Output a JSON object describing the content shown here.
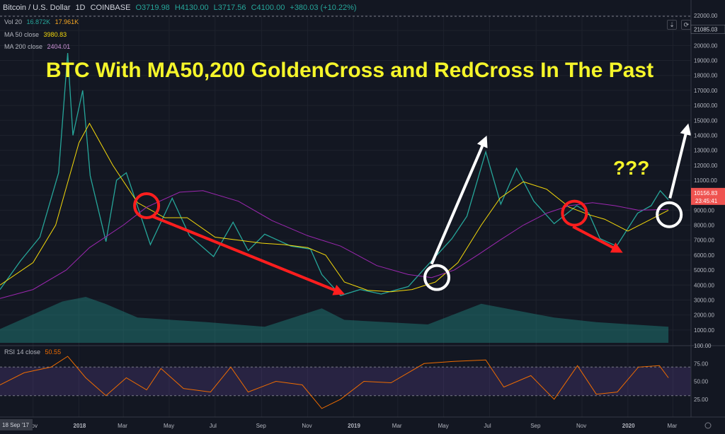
{
  "header": {
    "symbol": "Bitcoin / U.S. Dollar",
    "interval": "1D",
    "exchange": "COINBASE",
    "ohlc": [
      "O3719.98",
      "H4130.00",
      "L3717.56",
      "C4100.00",
      "+380.03 (+10.22%)"
    ],
    "ohlc_color": "#26a69a"
  },
  "indicators": {
    "vol": {
      "label": "Vol 20",
      "values": [
        "16.872K",
        "17.961K"
      ],
      "colors": [
        "#26a69a",
        "#f5a623"
      ]
    },
    "ma50": {
      "label": "MA 50 close",
      "value": "3980.83",
      "color": "#f5d90a"
    },
    "ma200": {
      "label": "MA 200 close",
      "value": "2404.01",
      "color": "#9c27b0"
    },
    "rsi": {
      "label": "RSI 14 close",
      "value": "50.55",
      "color": "#ef6c00"
    }
  },
  "toolbar": {
    "down_arrow_icon": "⇣",
    "refresh_icon": "⟳"
  },
  "annotation": {
    "title": "BTC With MA50,200 GoldenCross and RedCross In The Past",
    "question": "???",
    "text_color": "#f5f52a"
  },
  "price_labels": {
    "current": "10156.83",
    "countdown": "23:45:41",
    "top_dashed": "21085.03"
  },
  "chart_data": [
    {
      "type": "line",
      "title": "Bitcoin / U.S. Dollar · 1D · COINBASE",
      "y_scale": "linear",
      "ylim": [
        0,
        22000
      ],
      "y_ticks": [
        1000,
        2000,
        3000,
        4000,
        5000,
        6000,
        7000,
        8000,
        9000,
        10000,
        11000,
        12000,
        13000,
        14000,
        15000,
        16000,
        17000,
        18000,
        19000,
        20000,
        21000,
        22000
      ],
      "y_tick_labels": [
        "1000.00",
        "2000.00",
        "3000.00",
        "4000.00",
        "5000.00",
        "6000.00",
        "7000.00",
        "8000.00",
        "9000.00",
        "10000.00",
        "11000.00",
        "12000.00",
        "13000.00",
        "14000.00",
        "15000.00",
        "16000.00",
        "17000.00",
        "18000.00",
        "19000.00",
        "20000.00",
        "21000.00",
        "22000.00"
      ],
      "x_tick_labels": [
        "Nov",
        "2018",
        "Mar",
        "May",
        "Jul",
        "Sep",
        "Nov",
        "2019",
        "Mar",
        "May",
        "Jul",
        "Sep",
        "Nov",
        "2020",
        "Mar"
      ],
      "x_tick_dates": [
        "2017-11-01",
        "2018-01-01",
        "2018-03-01",
        "2018-05-01",
        "2018-07-01",
        "2018-09-01",
        "2018-11-01",
        "2019-01-01",
        "2019-03-01",
        "2019-05-01",
        "2019-07-01",
        "2019-09-01",
        "2019-11-01",
        "2020-01-01",
        "2020-03-01"
      ],
      "x_range": [
        "2017-09-18",
        "2020-03-25"
      ],
      "date_marker": "18 Sep '17",
      "series": [
        {
          "name": "BTC close",
          "color": "#26a69a",
          "x": [
            "2017-09-18",
            "2017-10-15",
            "2017-11-10",
            "2017-12-05",
            "2017-12-17",
            "2017-12-24",
            "2018-01-06",
            "2018-01-16",
            "2018-02-06",
            "2018-02-20",
            "2018-03-05",
            "2018-04-06",
            "2018-05-05",
            "2018-05-28",
            "2018-06-29",
            "2018-07-25",
            "2018-08-14",
            "2018-09-05",
            "2018-10-10",
            "2018-11-05",
            "2018-11-20",
            "2018-12-15",
            "2019-01-10",
            "2019-02-07",
            "2019-03-15",
            "2019-04-02",
            "2019-05-12",
            "2019-06-01",
            "2019-06-26",
            "2019-07-16",
            "2019-08-06",
            "2019-08-29",
            "2019-09-25",
            "2019-10-25",
            "2019-11-10",
            "2019-11-25",
            "2019-12-17",
            "2020-01-14",
            "2020-02-01",
            "2020-02-13",
            "2020-02-24"
          ],
          "y": [
            3700,
            5600,
            7200,
            11500,
            19500,
            14000,
            17000,
            11300,
            6900,
            11000,
            11500,
            6700,
            9800,
            7300,
            5900,
            8200,
            6300,
            7400,
            6600,
            6400,
            4700,
            3300,
            3700,
            3400,
            3900,
            4900,
            7100,
            8600,
            12900,
            9400,
            11800,
            9600,
            8100,
            9300,
            8800,
            7100,
            6600,
            8800,
            9300,
            10300,
            9700
          ]
        },
        {
          "name": "MA 50 close",
          "color": "#f5d90a",
          "x": [
            "2017-09-18",
            "2017-11-01",
            "2017-12-01",
            "2018-01-01",
            "2018-01-15",
            "2018-02-15",
            "2018-03-20",
            "2018-04-25",
            "2018-05-25",
            "2018-07-01",
            "2018-08-01",
            "2018-09-01",
            "2018-10-01",
            "2018-11-01",
            "2018-11-25",
            "2018-12-20",
            "2019-01-20",
            "2019-02-20",
            "2019-03-20",
            "2019-04-20",
            "2019-05-20",
            "2019-06-20",
            "2019-07-15",
            "2019-08-15",
            "2019-09-15",
            "2019-10-15",
            "2019-11-10",
            "2019-12-01",
            "2020-01-01",
            "2020-02-01",
            "2020-02-24"
          ],
          "y": [
            4000,
            5500,
            8000,
            13500,
            14800,
            12000,
            9500,
            8500,
            8500,
            7200,
            7000,
            6800,
            6700,
            6500,
            6000,
            4200,
            3650,
            3550,
            3700,
            4200,
            5500,
            8000,
            9800,
            10900,
            10400,
            9200,
            8700,
            8400,
            7600,
            8400,
            9000
          ]
        },
        {
          "name": "MA 200 close",
          "color": "#9c27b0",
          "x": [
            "2017-09-18",
            "2017-11-01",
            "2017-12-15",
            "2018-01-15",
            "2018-03-01",
            "2018-04-01",
            "2018-05-15",
            "2018-06-15",
            "2018-08-01",
            "2018-09-15",
            "2018-11-01",
            "2018-12-15",
            "2019-02-01",
            "2019-03-15",
            "2019-04-15",
            "2019-05-15",
            "2019-06-15",
            "2019-07-15",
            "2019-08-15",
            "2019-09-15",
            "2019-10-15",
            "2019-11-15",
            "2019-12-15",
            "2020-01-15",
            "2020-02-24"
          ],
          "y": [
            3100,
            3700,
            5000,
            6500,
            8000,
            9200,
            10200,
            10300,
            9600,
            8300,
            7300,
            6600,
            5300,
            4700,
            4500,
            5000,
            6000,
            7000,
            8000,
            8800,
            9300,
            9500,
            9300,
            9000,
            9050
          ]
        }
      ],
      "annotations": [
        {
          "kind": "circle",
          "x": "2018-04-01",
          "y": 9300,
          "color": "red"
        },
        {
          "kind": "arrow",
          "from": [
            "2018-04-08",
            8600
          ],
          "to": [
            "2018-12-15",
            3500
          ],
          "color": "red"
        },
        {
          "kind": "circle",
          "x": "2019-04-22",
          "y": 4500,
          "color": "white"
        },
        {
          "kind": "arrow",
          "from": [
            "2019-04-15",
            5400
          ],
          "to": [
            "2019-06-25",
            13700
          ],
          "color": "white"
        },
        {
          "kind": "circle",
          "x": "2019-10-22",
          "y": 8800,
          "color": "red"
        },
        {
          "kind": "arrow",
          "from": [
            "2019-10-20",
            7900
          ],
          "to": [
            "2019-12-20",
            6300
          ],
          "color": "red"
        },
        {
          "kind": "circle",
          "x": "2020-02-25",
          "y": 8700,
          "color": "white"
        },
        {
          "kind": "arrow",
          "from": [
            "2020-02-26",
            9800
          ],
          "to": [
            "2020-03-20",
            14500
          ],
          "color": "white"
        }
      ]
    },
    {
      "type": "area",
      "title": "Vol 20",
      "x": [
        "2017-09-18",
        "2017-12-10",
        "2018-01-10",
        "2018-02-05",
        "2018-03-20",
        "2018-06-20",
        "2018-09-05",
        "2018-11-20",
        "2018-12-20",
        "2019-04-10",
        "2019-06-20",
        "2019-09-25",
        "2019-11-20",
        "2020-02-24"
      ],
      "y": [
        0.3,
        0.9,
        1.0,
        0.85,
        0.55,
        0.45,
        0.35,
        0.75,
        0.5,
        0.4,
        0.85,
        0.55,
        0.45,
        0.35
      ],
      "y_units": "relative"
    },
    {
      "type": "line",
      "title": "RSI 14 close",
      "ylim": [
        0,
        100
      ],
      "y_ticks": [
        25,
        50,
        75,
        100
      ],
      "y_tick_labels": [
        "25.00",
        "50.00",
        "75.00",
        "100.00"
      ],
      "band": [
        30,
        70
      ],
      "series": [
        {
          "name": "RSI 14 close",
          "color": "#ef6c00",
          "x": [
            "2017-09-18",
            "2017-10-20",
            "2017-11-25",
            "2017-12-17",
            "2018-01-10",
            "2018-02-06",
            "2018-03-05",
            "2018-04-01",
            "2018-04-20",
            "2018-05-20",
            "2018-06-25",
            "2018-07-22",
            "2018-08-14",
            "2018-09-20",
            "2018-10-25",
            "2018-11-20",
            "2018-12-15",
            "2019-01-15",
            "2019-02-20",
            "2019-04-05",
            "2019-05-15",
            "2019-06-26",
            "2019-07-20",
            "2019-08-25",
            "2019-09-25",
            "2019-10-26",
            "2019-11-20",
            "2019-12-18",
            "2020-01-15",
            "2020-02-12",
            "2020-02-24"
          ],
          "y": [
            45,
            62,
            70,
            85,
            55,
            30,
            55,
            38,
            68,
            40,
            35,
            70,
            35,
            50,
            45,
            12,
            25,
            50,
            48,
            75,
            78,
            80,
            42,
            58,
            25,
            72,
            32,
            35,
            70,
            72,
            55
          ]
        }
      ]
    }
  ]
}
